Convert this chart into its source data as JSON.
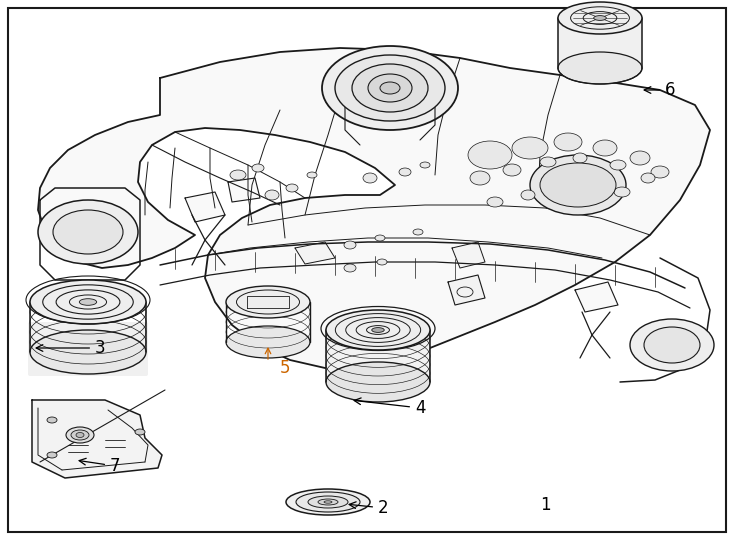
{
  "background_color": "#ffffff",
  "border_color": "#1a1a1a",
  "border_linewidth": 1.5,
  "fig_width": 7.34,
  "fig_height": 5.4,
  "dpi": 100,
  "lc": "#1a1a1a",
  "lw_main": 1.2,
  "lw_detail": 0.7,
  "lw_thin": 0.5,
  "label_fontsize": 12,
  "label5_color": "#cc6600",
  "label_color": "#000000"
}
